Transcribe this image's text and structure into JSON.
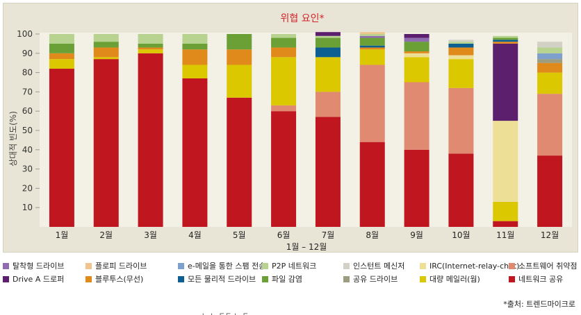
{
  "source_note": "*출처: 트렌드마이크로",
  "cut_text": "ㄴ ㄴ ㄷㄷ ㄴ ㄷ",
  "chart_data": {
    "type": "bar",
    "stacked": true,
    "title": "위협 요인*",
    "xlabel": "1월 – 12월",
    "ylabel": "상대적 빈도(%)",
    "ylim": [
      0,
      100
    ],
    "yticks": [
      10,
      20,
      30,
      40,
      50,
      60,
      70,
      80,
      90,
      100
    ],
    "grid": false,
    "legend_position": "bottom",
    "categories": [
      "1월",
      "2월",
      "3월",
      "4월",
      "5월",
      "6월",
      "7월",
      "8월",
      "9월",
      "10월",
      "11월",
      "12월"
    ],
    "series": [
      {
        "name": "네트워크 공유",
        "color": "#c0161f",
        "values": [
          82,
          87,
          90,
          77,
          67,
          60,
          57,
          44,
          40,
          38,
          3,
          37
        ]
      },
      {
        "name": "블루투스(무선)",
        "color": "#e08a1c",
        "values": [
          0,
          0,
          0,
          0,
          0,
          0,
          0,
          0,
          0,
          0,
          0,
          0
        ]
      },
      {
        "name": "소프트웨어 취약점",
        "color": "#e08a72",
        "values": [
          0,
          0,
          0,
          0,
          0,
          3,
          13,
          40,
          35,
          34,
          0,
          32
        ]
      },
      {
        "name": "대량 메일러(웜)",
        "color": "#dcc800",
        "values": [
          5,
          1,
          2,
          7,
          17,
          25,
          18,
          8,
          13,
          15,
          10,
          11
        ]
      },
      {
        "name": "IRC(Internet-relay-chat)",
        "color": "#eddf96",
        "values": [
          0,
          0,
          0,
          0,
          0,
          0,
          0,
          0,
          2,
          2,
          42,
          0
        ]
      },
      {
        "name": "Drive A 드로퍼",
        "color": "#5c1f6e",
        "values": [
          0,
          0,
          0,
          0,
          0,
          0,
          0,
          0,
          0,
          0,
          40,
          0
        ]
      },
      {
        "name": "블루투스(무선)",
        "color": "#e08a1c",
        "values": [
          3,
          5,
          1,
          8,
          8,
          5,
          0,
          1,
          1,
          4,
          1,
          5
        ]
      },
      {
        "name": "공유 드라이브",
        "color": "#9c9c80",
        "values": [
          0,
          0,
          0,
          0,
          0,
          0,
          0,
          0,
          0,
          0,
          0,
          2
        ]
      },
      {
        "name": "모든 물리적 드라이브",
        "color": "#0d5f92",
        "values": [
          0,
          0,
          0,
          0,
          0,
          0,
          5,
          1,
          0,
          2,
          1,
          0
        ]
      },
      {
        "name": "파일 감염",
        "color": "#6aa036",
        "values": [
          5,
          3,
          2,
          3,
          8,
          5,
          5,
          4,
          5,
          0,
          1,
          0
        ]
      },
      {
        "name": "탈착형 드라이브",
        "color": "#8f6bb0",
        "values": [
          0,
          0,
          0,
          0,
          0,
          0,
          0,
          1,
          2,
          0,
          0,
          0
        ]
      },
      {
        "name": "e-메일을 통한 스팸 전송",
        "color": "#7da0cc",
        "values": [
          0,
          0,
          0,
          0,
          0,
          0,
          0,
          0,
          0,
          0,
          0,
          3
        ]
      },
      {
        "name": "P2P 네트워크",
        "color": "#b7d38f",
        "values": [
          5,
          4,
          5,
          5,
          0,
          2,
          1,
          1,
          0,
          1,
          1,
          3
        ]
      },
      {
        "name": "인스턴트 메신저",
        "color": "#d3d0c6",
        "values": [
          0,
          0,
          0,
          0,
          0,
          0,
          0,
          0,
          0,
          1,
          0,
          3
        ]
      },
      {
        "name": "Drive A 드로퍼",
        "color": "#5c1f6e",
        "values": [
          0,
          0,
          0,
          0,
          0,
          0,
          2,
          0,
          2,
          0,
          0,
          0
        ]
      },
      {
        "name": "플로피 드라이브",
        "color": "#f0c48e",
        "values": [
          0,
          0,
          0,
          0,
          0,
          0,
          0,
          1,
          0,
          0,
          0,
          0
        ]
      }
    ],
    "legend": [
      {
        "label": "탈착형 드라이브",
        "color": "#8f6bb0"
      },
      {
        "label": "플로피 드라이브",
        "color": "#f0c48e"
      },
      {
        "label": "e-메일을 통한 스팸 전송",
        "color": "#7da0cc"
      },
      {
        "label": "P2P 네트워크",
        "color": "#b7d38f"
      },
      {
        "label": "인스턴트 메신저",
        "color": "#d3d0c6"
      },
      {
        "label": "IRC(Internet-relay-chat)",
        "color": "#eddf96"
      },
      {
        "label": "소프트웨어 취약점",
        "color": "#e08a72"
      },
      {
        "label": "Drive A 드로퍼",
        "color": "#5c1f6e"
      },
      {
        "label": "블루투스(무선)",
        "color": "#e08a1c"
      },
      {
        "label": "모든 물리적 드라이브",
        "color": "#0d5f92"
      },
      {
        "label": "파일 감염",
        "color": "#6aa036"
      },
      {
        "label": "공유 드라이브",
        "color": "#9c9c80"
      },
      {
        "label": "대량 메일러(웜)",
        "color": "#dcc800"
      },
      {
        "label": "네트워크 공유",
        "color": "#c0161f"
      }
    ]
  }
}
